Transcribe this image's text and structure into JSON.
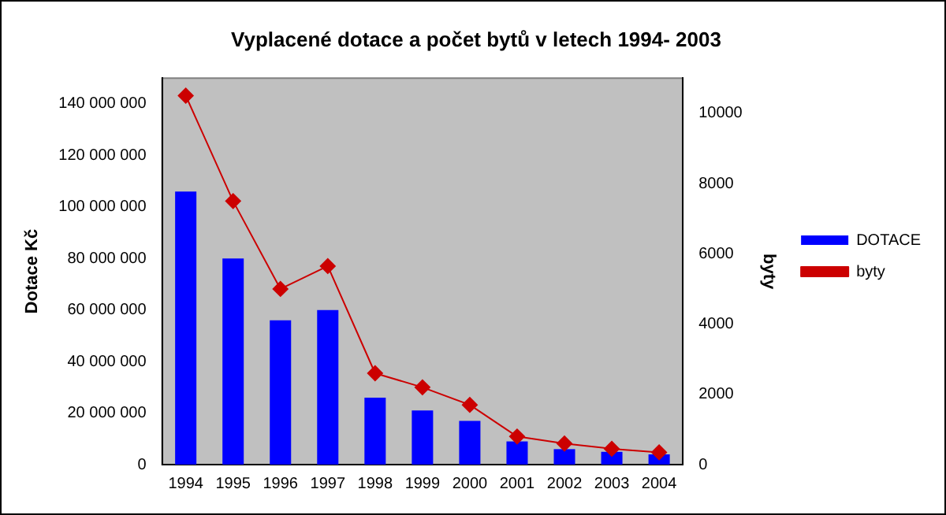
{
  "chart_data": {
    "type": "bar",
    "title": "Vyplacené dotace a počet bytů v letech 1994- 2003",
    "ylabel": "Dotace Kč",
    "y2label": "byty",
    "categories": [
      "1994",
      "1995",
      "1996",
      "1997",
      "1998",
      "1999",
      "2000",
      "2001",
      "2002",
      "2003",
      "2004"
    ],
    "series": [
      {
        "name": "DOTACE",
        "color": "#0000ff",
        "values": [
          106000000,
          80000000,
          56000000,
          60000000,
          26000000,
          21000000,
          17000000,
          9000000,
          6000000,
          5000000,
          4000000
        ]
      },
      {
        "name": "byty",
        "type": "line",
        "axis": "y2",
        "color": "#cc0000",
        "marker": "diamond",
        "line_style": "solid",
        "values": [
          10500,
          7500,
          5000,
          5650,
          2600,
          2200,
          1700,
          800,
          600,
          450,
          350
        ]
      }
    ],
    "ylim": [
      0,
      150000000
    ],
    "yticks": [
      {
        "value": 0,
        "label": "0"
      },
      {
        "value": 20000000,
        "label": "20 000 000"
      },
      {
        "value": 40000000,
        "label": "40 000 000"
      },
      {
        "value": 60000000,
        "label": "60 000 000"
      },
      {
        "value": 80000000,
        "label": "80 000 000"
      },
      {
        "value": 100000000,
        "label": "100 000 000"
      },
      {
        "value": 120000000,
        "label": "120 000 000"
      },
      {
        "value": 140000000,
        "label": "140 000 000"
      }
    ],
    "y2lim": [
      0,
      11000
    ],
    "y2ticks": [
      0,
      2000,
      4000,
      6000,
      8000,
      10000
    ],
    "grid": false,
    "legend": "right"
  }
}
